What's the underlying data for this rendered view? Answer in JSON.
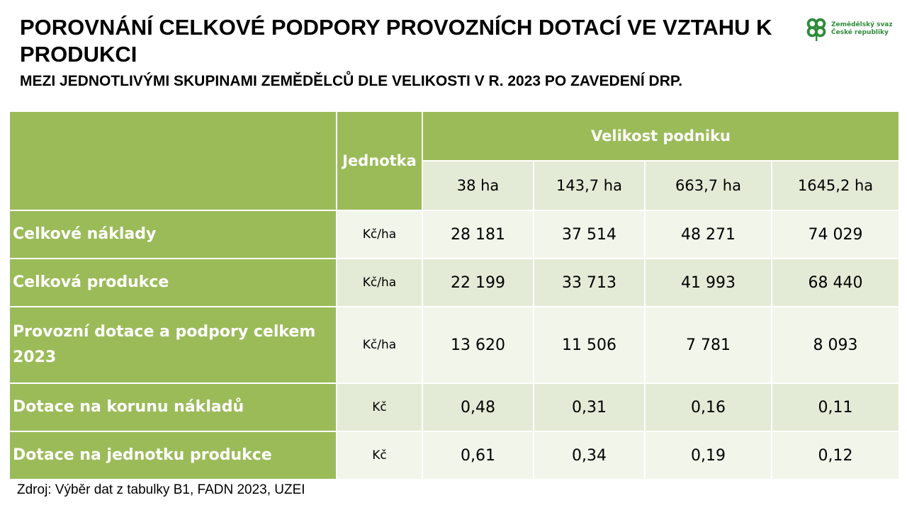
{
  "title": "POROVNÁNÍ CELKOVÉ PODPORY PROVOZNÍCH DOTACÍ VE VZTAHU K PRODUKCI",
  "subtitle": "MEZI JEDNOTLIVÝMI SKUPINAMI ZEMĚDĚLCŮ DLE VELIKOSTI V R. 2023 PO ZAVEDENÍ DRP.",
  "logo": {
    "line1": "Zemědělský svaz",
    "line2": "České republiky",
    "icon": "four-leaf-clover-icon",
    "color": "#2e8b3a"
  },
  "table": {
    "unit_header": "Jednotka",
    "group_header": "Velikost podniku",
    "sizes": [
      "38 ha",
      "143,7 ha",
      "663,7 ha",
      "1645,2 ha"
    ],
    "rows": [
      {
        "label": "Celkové náklady",
        "unit": "Kč/ha",
        "values": [
          "28 181",
          "37 514",
          "48 271",
          "74 029"
        ]
      },
      {
        "label": "Celková produkce",
        "unit": "Kč/ha",
        "values": [
          "22 199",
          "33 713",
          "41 993",
          "68 440"
        ]
      },
      {
        "label": "Provozní dotace a podpory celkem 2023",
        "unit": "Kč/ha",
        "values": [
          "13 620",
          "11 506",
          "7 781",
          "8 093"
        ]
      },
      {
        "label": "Dotace na korunu nákladů",
        "unit": "Kč",
        "values": [
          "0,48",
          "0,31",
          "0,16",
          "0,11"
        ]
      },
      {
        "label": "Dotace na jednotku produkce",
        "unit": "Kč",
        "values": [
          "0,61",
          "0,34",
          "0,19",
          "0,12"
        ]
      }
    ]
  },
  "colors": {
    "header_green": "#9bbb59",
    "row_light": "#e3ebd6",
    "row_lighter": "#f1f5ea"
  },
  "source": "Zdroj: Výběr dat z tabulky B1, FADN 2023, UZEI"
}
